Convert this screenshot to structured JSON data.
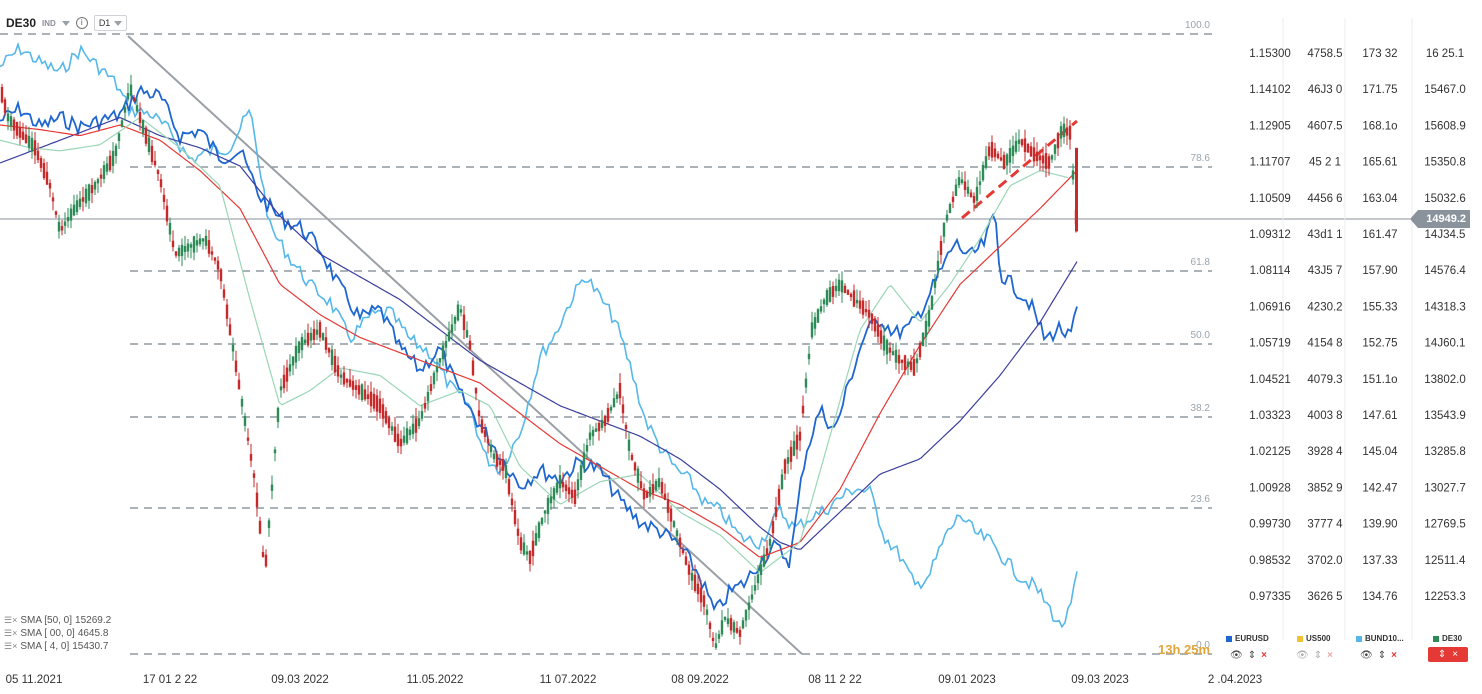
{
  "header": {
    "symbol": "DE30",
    "type": "IND",
    "timeframe": "D1"
  },
  "indicators": [
    {
      "label": "SMA [50, 0]",
      "value": "15269.2"
    },
    {
      "label": "SMA [ 00, 0]",
      "value": "4645.8"
    },
    {
      "label": "SMA [ 4, 0]",
      "value": "15430.7"
    }
  ],
  "price_badge": "14949.2",
  "countdown": "13h 25m",
  "legend": [
    {
      "name": "EURUSD",
      "color": "#1e66d0"
    },
    {
      "name": "US500",
      "color": "#f2c230"
    },
    {
      "name": "BUND10...",
      "color": "#56b8ea"
    },
    {
      "name": "DE30",
      "color": "#2e8b57"
    }
  ],
  "colors": {
    "up": "#2e8b57",
    "down": "#c62a2a",
    "eurusd": "#1e66d0",
    "bund": "#56b8ea",
    "sma50": "#9bd6b7",
    "sma100": "#e53935",
    "sma200": "#3b3f9e",
    "fib": "#8f98a0"
  },
  "chart_data": {
    "type": "line",
    "x_ticks": [
      "05 11.2021",
      "17 01 2 22",
      "09.03 2022",
      "11.05.2022",
      "11 07.2022",
      "08 09.2022",
      "08 11 2 22",
      "09.01 2023",
      "09.03 2023",
      "2 .04.2023"
    ],
    "fib_levels": [
      "100.0",
      "78.6",
      "61.8",
      "50.0",
      "38.2",
      "23.6",
      "0.0"
    ],
    "axes": [
      {
        "name": "EURUSD",
        "ticks": [
          "1.15300",
          "1.14102",
          "1.12905",
          "1.11707",
          "1.10509",
          "1.09312",
          "1.08114",
          "1.06916",
          "1.05719",
          "1.04521",
          "1.03323",
          "1.02125",
          "1.00928",
          "0.99730",
          "0.98532",
          "0.97335"
        ]
      },
      {
        "name": "US500",
        "ticks": [
          "4758.5",
          "46J3 0",
          "4607.5",
          "45 2 1",
          "4456 6",
          "43d1 1",
          "43J5 7",
          "4230.2",
          "4154 8",
          "4079.3",
          "4003 8",
          "3928 4",
          "3852 9",
          "3777 4",
          "3702.0",
          "3626 5"
        ]
      },
      {
        "name": "BUND10",
        "ticks": [
          "173 32",
          "171.75",
          "168.1o",
          "165.61",
          "163.04",
          "161.47",
          "157.90",
          "155.33",
          "152.75",
          "151.1o",
          "147.61",
          "145.04",
          "142.47",
          "139.90",
          "137.33",
          "134.76"
        ]
      },
      {
        "name": "DE30",
        "ticks": [
          "16 25.1",
          "15467.0",
          "15608.9",
          "15350.8",
          "15032.6",
          "14J34.5",
          "14576.4",
          "14318.3",
          "14J60.1",
          "13802.0",
          "13543.9",
          "13285.8",
          "13027.7",
          "12769.5",
          "12511.4",
          "12253.3"
        ]
      }
    ],
    "de30_path": [
      [
        0,
        15900
      ],
      [
        8,
        15700
      ],
      [
        20,
        15600
      ],
      [
        35,
        15500
      ],
      [
        50,
        15250
      ],
      [
        60,
        14950
      ],
      [
        75,
        15100
      ],
      [
        95,
        15250
      ],
      [
        115,
        15450
      ],
      [
        130,
        15900
      ],
      [
        145,
        15600
      ],
      [
        160,
        15300
      ],
      [
        175,
        14800
      ],
      [
        190,
        14850
      ],
      [
        205,
        14900
      ],
      [
        220,
        14700
      ],
      [
        240,
        13900
      ],
      [
        255,
        13300
      ],
      [
        265,
        12700
      ],
      [
        280,
        13900
      ],
      [
        300,
        14200
      ],
      [
        320,
        14300
      ],
      [
        340,
        14000
      ],
      [
        360,
        13900
      ],
      [
        380,
        13800
      ],
      [
        400,
        13550
      ],
      [
        420,
        13700
      ],
      [
        440,
        14100
      ],
      [
        460,
        14450
      ],
      [
        470,
        14200
      ],
      [
        480,
        13700
      ],
      [
        495,
        13450
      ],
      [
        505,
        13400
      ],
      [
        520,
        12900
      ],
      [
        530,
        12800
      ],
      [
        545,
        13100
      ],
      [
        560,
        13300
      ],
      [
        575,
        13200
      ],
      [
        590,
        13600
      ],
      [
        605,
        13700
      ],
      [
        620,
        13900
      ],
      [
        630,
        13500
      ],
      [
        645,
        13200
      ],
      [
        660,
        13300
      ],
      [
        675,
        13000
      ],
      [
        690,
        12700
      ],
      [
        705,
        12500
      ],
      [
        715,
        12200
      ],
      [
        725,
        12400
      ],
      [
        740,
        12300
      ],
      [
        755,
        12600
      ],
      [
        770,
        12900
      ],
      [
        785,
        13400
      ],
      [
        800,
        13600
      ],
      [
        812,
        14300
      ],
      [
        825,
        14500
      ],
      [
        840,
        14600
      ],
      [
        855,
        14500
      ],
      [
        870,
        14400
      ],
      [
        885,
        14200
      ],
      [
        900,
        14100
      ],
      [
        915,
        14050
      ],
      [
        930,
        14400
      ],
      [
        945,
        15000
      ],
      [
        960,
        15300
      ],
      [
        975,
        15150
      ],
      [
        990,
        15500
      ],
      [
        1005,
        15400
      ],
      [
        1020,
        15550
      ],
      [
        1035,
        15450
      ],
      [
        1050,
        15400
      ],
      [
        1062,
        15620
      ],
      [
        1070,
        15600
      ],
      [
        1077,
        14950
      ]
    ],
    "eurusd_path": [
      [
        0,
        1.13
      ],
      [
        20,
        1.134
      ],
      [
        40,
        1.128
      ],
      [
        60,
        1.131
      ],
      [
        80,
        1.128
      ],
      [
        100,
        1.13
      ],
      [
        120,
        1.132
      ],
      [
        140,
        1.14
      ],
      [
        160,
        1.138
      ],
      [
        180,
        1.125
      ],
      [
        200,
        1.127
      ],
      [
        220,
        1.118
      ],
      [
        240,
        1.12
      ],
      [
        260,
        1.105
      ],
      [
        280,
        1.098
      ],
      [
        300,
        1.095
      ],
      [
        320,
        1.088
      ],
      [
        340,
        1.075
      ],
      [
        360,
        1.065
      ],
      [
        380,
        1.068
      ],
      [
        400,
        1.055
      ],
      [
        420,
        1.048
      ],
      [
        440,
        1.055
      ],
      [
        460,
        1.04
      ],
      [
        480,
        1.03
      ],
      [
        500,
        1.02
      ],
      [
        520,
        1.01
      ],
      [
        540,
        1.015
      ],
      [
        560,
        1.012
      ],
      [
        580,
        1.018
      ],
      [
        600,
        1.015
      ],
      [
        620,
        1.005
      ],
      [
        640,
        0.998
      ],
      [
        660,
        0.995
      ],
      [
        680,
        0.99
      ],
      [
        700,
        0.98
      ],
      [
        715,
        0.968
      ],
      [
        730,
        0.975
      ],
      [
        745,
        0.978
      ],
      [
        760,
        0.985
      ],
      [
        775,
        0.99
      ],
      [
        790,
        0.985
      ],
      [
        805,
        1.02
      ],
      [
        820,
        1.035
      ],
      [
        835,
        1.028
      ],
      [
        850,
        1.045
      ],
      [
        865,
        1.06
      ],
      [
        880,
        1.065
      ],
      [
        895,
        1.06
      ],
      [
        910,
        1.062
      ],
      [
        925,
        1.07
      ],
      [
        940,
        1.08
      ],
      [
        955,
        1.09
      ],
      [
        970,
        1.085
      ],
      [
        985,
        1.09
      ],
      [
        995,
        1.1
      ],
      [
        1000,
        1.08
      ],
      [
        1015,
        1.075
      ],
      [
        1030,
        1.07
      ],
      [
        1045,
        1.058
      ],
      [
        1060,
        1.062
      ],
      [
        1070,
        1.058
      ],
      [
        1077,
        1.068
      ]
    ],
    "bund_path": [
      [
        0,
        172.2
      ],
      [
        20,
        173.5
      ],
      [
        40,
        172.5
      ],
      [
        60,
        171.8
      ],
      [
        80,
        173.4
      ],
      [
        100,
        172.1
      ],
      [
        115,
        171.1
      ],
      [
        130,
        169.1
      ],
      [
        150,
        168.9
      ],
      [
        170,
        167.6
      ],
      [
        190,
        165.6
      ],
      [
        210,
        166.2
      ],
      [
        230,
        166.5
      ],
      [
        250,
        169.1
      ],
      [
        270,
        160.8
      ],
      [
        290,
        158.6
      ],
      [
        310,
        156.7
      ],
      [
        330,
        155.5
      ],
      [
        350,
        152.9
      ],
      [
        370,
        154.5
      ],
      [
        390,
        154.8
      ],
      [
        410,
        152.8
      ],
      [
        430,
        151.9
      ],
      [
        450,
        149.5
      ],
      [
        470,
        148.1
      ],
      [
        485,
        144.5
      ],
      [
        500,
        143.6
      ],
      [
        520,
        146.2
      ],
      [
        540,
        151.6
      ],
      [
        555,
        153.2
      ],
      [
        570,
        155.5
      ],
      [
        585,
        157.4
      ],
      [
        600,
        155.8
      ],
      [
        615,
        154.2
      ],
      [
        630,
        151.0
      ],
      [
        645,
        147.2
      ],
      [
        660,
        145.2
      ],
      [
        675,
        143.7
      ],
      [
        690,
        142.8
      ],
      [
        705,
        141.2
      ],
      [
        720,
        140.7
      ],
      [
        740,
        138.8
      ],
      [
        760,
        138.4
      ],
      [
        780,
        140.7
      ],
      [
        795,
        139.4
      ],
      [
        810,
        140.2
      ],
      [
        825,
        140.7
      ],
      [
        840,
        141.6
      ],
      [
        855,
        142.3
      ],
      [
        870,
        142.0
      ],
      [
        885,
        138.8
      ],
      [
        900,
        137.5
      ],
      [
        915,
        135.3
      ],
      [
        930,
        136.2
      ],
      [
        945,
        138.8
      ],
      [
        960,
        140.4
      ],
      [
        975,
        139.1
      ],
      [
        990,
        138.5
      ],
      [
        1005,
        137.2
      ],
      [
        1020,
        136.0
      ],
      [
        1035,
        135.3
      ],
      [
        1050,
        133.7
      ],
      [
        1060,
        132.4
      ],
      [
        1070,
        133.5
      ],
      [
        1077,
        136.2
      ]
    ],
    "sma50_path": [
      [
        0,
        15550
      ],
      [
        30,
        15500
      ],
      [
        60,
        15480
      ],
      [
        100,
        15520
      ],
      [
        140,
        15700
      ],
      [
        180,
        15500
      ],
      [
        220,
        15250
      ],
      [
        250,
        14500
      ],
      [
        280,
        13800
      ],
      [
        310,
        13900
      ],
      [
        340,
        14050
      ],
      [
        380,
        14000
      ],
      [
        420,
        13800
      ],
      [
        460,
        13900
      ],
      [
        490,
        13800
      ],
      [
        520,
        13400
      ],
      [
        560,
        13150
      ],
      [
        600,
        13300
      ],
      [
        640,
        13350
      ],
      [
        680,
        13100
      ],
      [
        720,
        12950
      ],
      [
        760,
        12700
      ],
      [
        800,
        12900
      ],
      [
        830,
        13600
      ],
      [
        860,
        14300
      ],
      [
        890,
        14600
      ],
      [
        920,
        14350
      ],
      [
        950,
        14600
      ],
      [
        980,
        14900
      ],
      [
        1010,
        15250
      ],
      [
        1040,
        15350
      ],
      [
        1070,
        15300
      ]
    ],
    "sma100_path": [
      [
        0,
        15650
      ],
      [
        40,
        15620
      ],
      [
        80,
        15580
      ],
      [
        120,
        15650
      ],
      [
        160,
        15550
      ],
      [
        200,
        15350
      ],
      [
        240,
        15100
      ],
      [
        280,
        14600
      ],
      [
        320,
        14400
      ],
      [
        360,
        14250
      ],
      [
        400,
        14150
      ],
      [
        440,
        14050
      ],
      [
        480,
        13950
      ],
      [
        520,
        13750
      ],
      [
        560,
        13550
      ],
      [
        600,
        13400
      ],
      [
        640,
        13250
      ],
      [
        680,
        13150
      ],
      [
        720,
        13000
      ],
      [
        760,
        12800
      ],
      [
        800,
        12900
      ],
      [
        840,
        13250
      ],
      [
        880,
        13750
      ],
      [
        920,
        14200
      ],
      [
        960,
        14600
      ],
      [
        1000,
        14850
      ],
      [
        1040,
        15100
      ],
      [
        1077,
        15350
      ]
    ],
    "sma200_path": [
      [
        0,
        15400
      ],
      [
        40,
        15500
      ],
      [
        80,
        15600
      ],
      [
        120,
        15700
      ],
      [
        160,
        15580
      ],
      [
        200,
        15500
      ],
      [
        240,
        15380
      ],
      [
        280,
        15050
      ],
      [
        320,
        14800
      ],
      [
        360,
        14650
      ],
      [
        400,
        14500
      ],
      [
        440,
        14300
      ],
      [
        480,
        14100
      ],
      [
        520,
        13950
      ],
      [
        560,
        13800
      ],
      [
        600,
        13700
      ],
      [
        640,
        13600
      ],
      [
        680,
        13450
      ],
      [
        720,
        13250
      ],
      [
        760,
        13000
      ],
      [
        780,
        12900
      ],
      [
        800,
        12850
      ],
      [
        840,
        13100
      ],
      [
        880,
        13350
      ],
      [
        920,
        13450
      ],
      [
        960,
        13700
      ],
      [
        1000,
        14000
      ],
      [
        1040,
        14350
      ],
      [
        1077,
        14750
      ]
    ]
  }
}
